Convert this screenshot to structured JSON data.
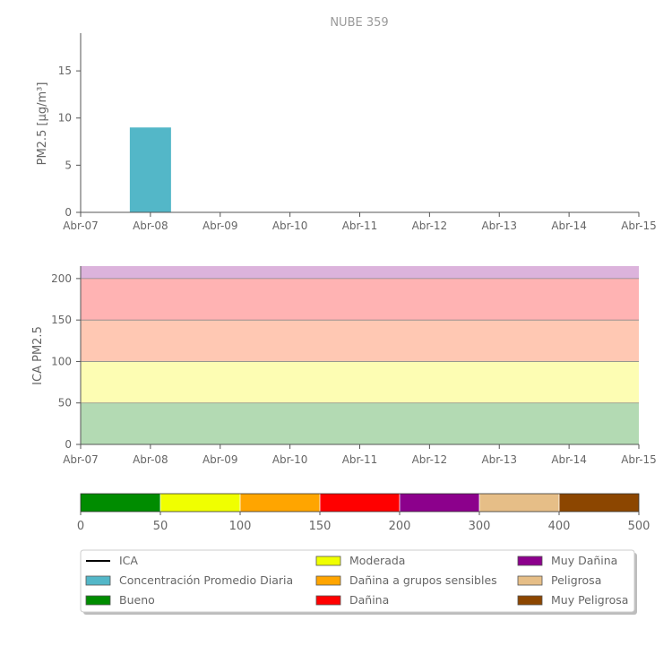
{
  "chart_data": [
    {
      "type": "bar",
      "title": "NUBE 359",
      "ylabel": "PM2.5 [μg/m³]",
      "x_ticks": [
        "Abr-07",
        "Abr-08",
        "Abr-09",
        "Abr-10",
        "Abr-11",
        "Abr-12",
        "Abr-13",
        "Abr-14",
        "Abr-15"
      ],
      "y_ticks": [
        0,
        5,
        10,
        15
      ],
      "ylim": [
        0,
        19
      ],
      "series": [
        {
          "name": "Concentración Promedio Diaria",
          "color": "#53b7c8",
          "points": [
            {
              "x": "Abr-08",
              "value": 9.0
            }
          ]
        }
      ]
    },
    {
      "type": "area",
      "ylabel": "ICA PM2.5",
      "x_ticks": [
        "Abr-07",
        "Abr-08",
        "Abr-09",
        "Abr-10",
        "Abr-11",
        "Abr-12",
        "Abr-13",
        "Abr-14",
        "Abr-15"
      ],
      "y_ticks": [
        0,
        50,
        100,
        150,
        200
      ],
      "ylim": [
        0,
        215
      ],
      "bands": [
        {
          "from": 0,
          "to": 50,
          "color": "#b3dab3"
        },
        {
          "from": 50,
          "to": 100,
          "color": "#fdfdb3"
        },
        {
          "from": 100,
          "to": 150,
          "color": "#ffc8b3"
        },
        {
          "from": 150,
          "to": 200,
          "color": "#ffb3b3"
        },
        {
          "from": 200,
          "to": 215,
          "color": "#dcb3dc"
        }
      ],
      "series": [
        {
          "name": "ICA",
          "color": "#000000",
          "values": []
        }
      ]
    }
  ],
  "colorbar": {
    "ticks": [
      "0",
      "50",
      "100",
      "150",
      "200",
      "300",
      "400",
      "500"
    ],
    "segments": [
      {
        "label": "Bueno",
        "color": "#008c00"
      },
      {
        "label": "Moderada",
        "color": "#f0ff00"
      },
      {
        "label": "Dañina a grupos sensibles",
        "color": "#ffa500"
      },
      {
        "label": "Dañina",
        "color": "#ff0000"
      },
      {
        "label": "Muy Dañina",
        "color": "#8c008c"
      },
      {
        "label": "Peligrosa",
        "color": "#e6be87"
      },
      {
        "label": "Muy Peligrosa",
        "color": "#8c4600"
      }
    ]
  },
  "legend": [
    {
      "label": "ICA",
      "kind": "line",
      "color": "#000000"
    },
    {
      "label": "Concentración Promedio Diaria",
      "kind": "box",
      "color": "#53b7c8"
    },
    {
      "label": "Bueno",
      "kind": "box",
      "color": "#008c00"
    },
    {
      "label": "Moderada",
      "kind": "box",
      "color": "#f0ff00"
    },
    {
      "label": "Dañina a grupos sensibles",
      "kind": "box",
      "color": "#ffa500"
    },
    {
      "label": "Dañina",
      "kind": "box",
      "color": "#ff0000"
    },
    {
      "label": "Muy Dañina",
      "kind": "box",
      "color": "#8c008c"
    },
    {
      "label": "Peligrosa",
      "kind": "box",
      "color": "#e6be87"
    },
    {
      "label": "Muy Peligrosa",
      "kind": "box",
      "color": "#8c4600"
    }
  ]
}
